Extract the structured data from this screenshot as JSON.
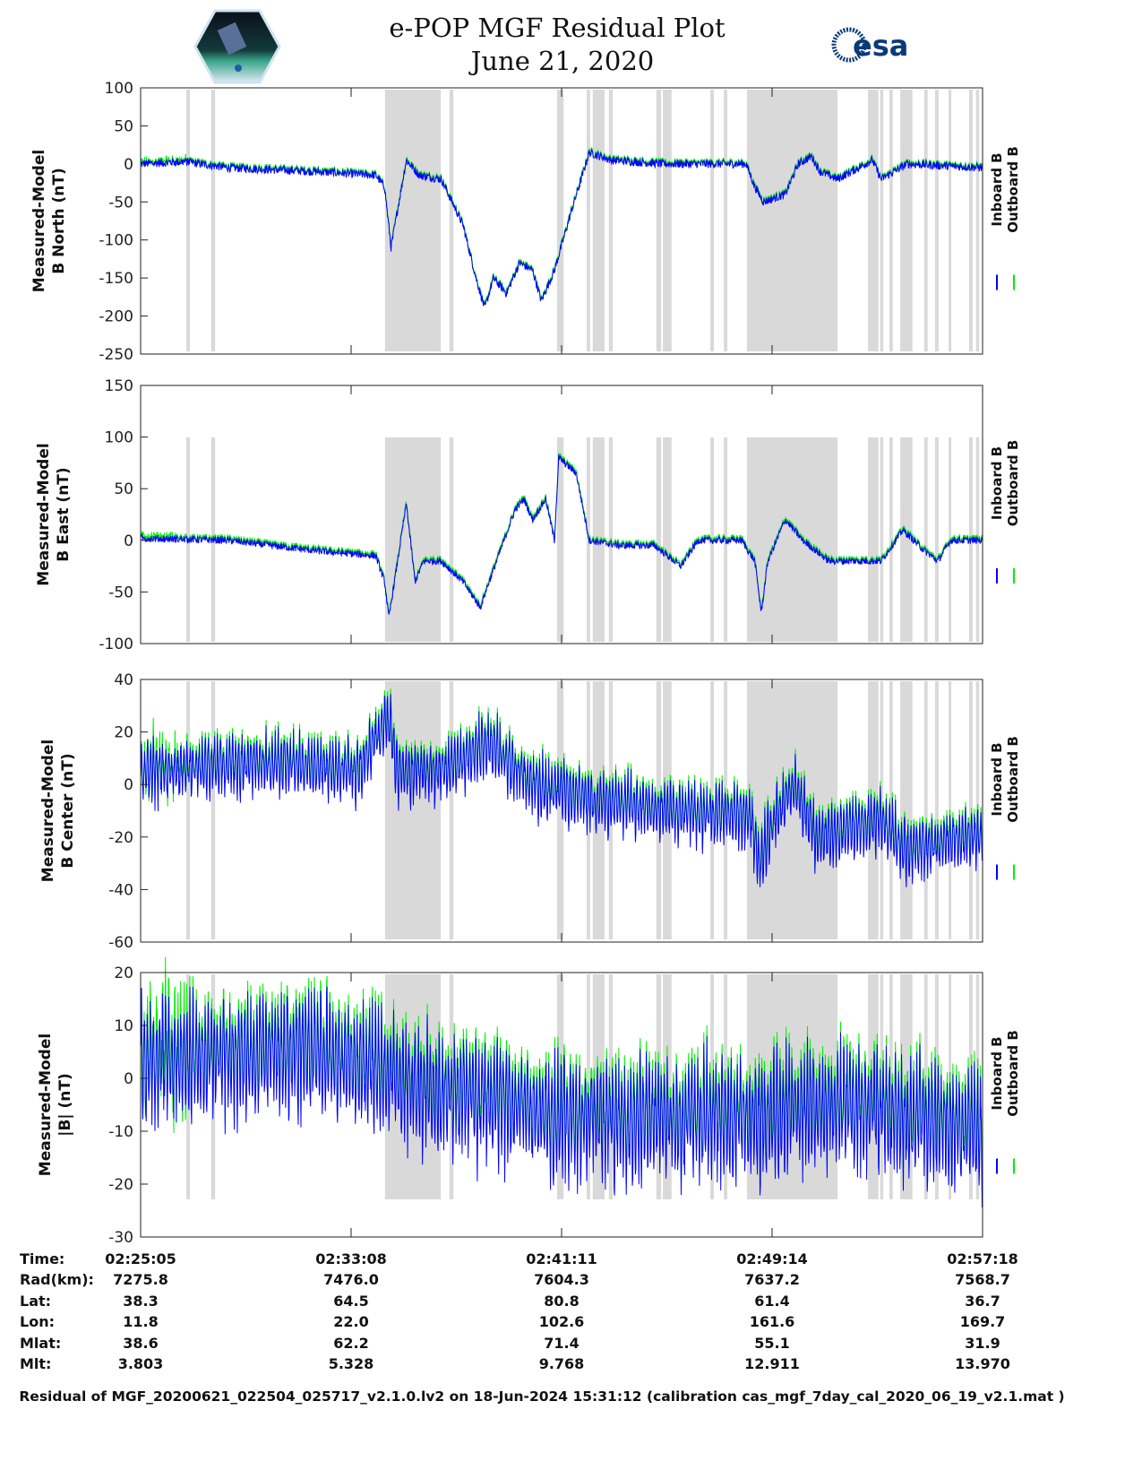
{
  "header": {
    "title": "e-POP MGF Residual Plot",
    "date": "June 21, 2020",
    "left_logo": "CASSIOPE",
    "right_logo": "esa"
  },
  "footer": "Residual of MGF_20200621_022504_025717_v2.1.0.lv2 on 18-Jun-2024 15:31:12 (calibration cas_mgf_7day_cal_2020_06_19_v2.1.mat )",
  "colors": {
    "inboard": "#0000ff",
    "outboard": "#00ee00",
    "band": "#d9d9d9"
  },
  "table": {
    "labels": [
      "Time:",
      "Rad(km):",
      "Lat:",
      "Lon:",
      "Mlat:",
      "Mlt:"
    ],
    "columns": [
      [
        "02:25:05",
        "7275.8",
        "38.3",
        "11.8",
        "38.6",
        "3.803"
      ],
      [
        "02:33:08",
        "7476.0",
        "64.5",
        "22.0",
        "62.2",
        "5.328"
      ],
      [
        "02:41:11",
        "7604.3",
        "80.8",
        "102.6",
        "71.4",
        "9.768"
      ],
      [
        "02:49:14",
        "7637.2",
        "61.4",
        "161.6",
        "55.1",
        "12.911"
      ],
      [
        "02:57:18",
        "7568.7",
        "36.7",
        "169.7",
        "31.9",
        "13.970"
      ]
    ]
  },
  "chart_data": {
    "type": "line",
    "x_unit": "seconds since 02:25:05",
    "xlim": [
      0,
      1933
    ],
    "xticks": [
      0,
      483,
      966,
      1449,
      1933
    ],
    "legend": [
      "Inboard B",
      "Outboard B"
    ],
    "legend_placement": "right",
    "shaded_intervals": [
      [
        105,
        113
      ],
      [
        162,
        171
      ],
      [
        561,
        689
      ],
      [
        709,
        718
      ],
      [
        956,
        971
      ],
      [
        1024,
        1032
      ],
      [
        1038,
        1065
      ],
      [
        1075,
        1084
      ],
      [
        1184,
        1195
      ],
      [
        1199,
        1219
      ],
      [
        1308,
        1316
      ],
      [
        1339,
        1347
      ],
      [
        1392,
        1600
      ],
      [
        1670,
        1694
      ],
      [
        1698,
        1705
      ],
      [
        1719,
        1727
      ],
      [
        1744,
        1772
      ],
      [
        1799,
        1807
      ],
      [
        1824,
        1832
      ],
      [
        1855,
        1861
      ],
      [
        1902,
        1910
      ],
      [
        1918,
        1925
      ]
    ],
    "panels": [
      {
        "ylabel": [
          "Measured-Model",
          "B North (nT)"
        ],
        "ylim": [
          -250,
          100
        ],
        "yticks": [
          "100",
          "50",
          "0",
          "-50",
          "-100",
          "-150",
          "-200",
          "-250"
        ],
        "noise": 8,
        "trend": [
          [
            0,
            0
          ],
          [
            100,
            3
          ],
          [
            200,
            -5
          ],
          [
            400,
            -10
          ],
          [
            540,
            -15
          ],
          [
            560,
            -30
          ],
          [
            575,
            -110
          ],
          [
            590,
            -60
          ],
          [
            610,
            5
          ],
          [
            640,
            -15
          ],
          [
            690,
            -20
          ],
          [
            740,
            -80
          ],
          [
            770,
            -150
          ],
          [
            790,
            -190
          ],
          [
            810,
            -150
          ],
          [
            840,
            -170
          ],
          [
            870,
            -130
          ],
          [
            900,
            -140
          ],
          [
            920,
            -180
          ],
          [
            950,
            -140
          ],
          [
            990,
            -60
          ],
          [
            1030,
            15
          ],
          [
            1080,
            5
          ],
          [
            1200,
            0
          ],
          [
            1390,
            0
          ],
          [
            1410,
            -30
          ],
          [
            1430,
            -50
          ],
          [
            1480,
            -40
          ],
          [
            1510,
            0
          ],
          [
            1540,
            10
          ],
          [
            1560,
            -10
          ],
          [
            1600,
            -20
          ],
          [
            1680,
            5
          ],
          [
            1700,
            -20
          ],
          [
            1760,
            0
          ],
          [
            1933,
            -5
          ]
        ]
      },
      {
        "ylabel": [
          "Measured-Model",
          "B East (nT)"
        ],
        "ylim": [
          -100,
          150
        ],
        "yticks": [
          "150",
          "100",
          "50",
          "0",
          "-50",
          "-100"
        ],
        "noise": 5,
        "trend": [
          [
            0,
            2
          ],
          [
            200,
            0
          ],
          [
            400,
            -10
          ],
          [
            540,
            -15
          ],
          [
            560,
            -40
          ],
          [
            570,
            -75
          ],
          [
            590,
            -20
          ],
          [
            610,
            35
          ],
          [
            630,
            -40
          ],
          [
            650,
            -20
          ],
          [
            690,
            -20
          ],
          [
            740,
            -40
          ],
          [
            780,
            -65
          ],
          [
            800,
            -40
          ],
          [
            860,
            30
          ],
          [
            880,
            40
          ],
          [
            900,
            20
          ],
          [
            930,
            40
          ],
          [
            950,
            0
          ],
          [
            960,
            80
          ],
          [
            1000,
            65
          ],
          [
            1030,
            0
          ],
          [
            1100,
            -5
          ],
          [
            1180,
            -5
          ],
          [
            1240,
            -25
          ],
          [
            1280,
            0
          ],
          [
            1380,
            0
          ],
          [
            1410,
            -20
          ],
          [
            1425,
            -70
          ],
          [
            1440,
            -20
          ],
          [
            1480,
            20
          ],
          [
            1520,
            0
          ],
          [
            1580,
            -20
          ],
          [
            1700,
            -20
          ],
          [
            1750,
            10
          ],
          [
            1800,
            -10
          ],
          [
            1830,
            -20
          ],
          [
            1860,
            0
          ],
          [
            1933,
            0
          ]
        ]
      },
      {
        "ylabel": [
          "Measured-Model",
          "B Center (nT)"
        ],
        "ylim": [
          -60,
          40
        ],
        "yticks": [
          "40",
          "20",
          "0",
          "-20",
          "-40",
          "-60"
        ],
        "noise": 11,
        "trend": [
          [
            0,
            5
          ],
          [
            300,
            8
          ],
          [
            500,
            5
          ],
          [
            570,
            25
          ],
          [
            590,
            5
          ],
          [
            700,
            5
          ],
          [
            800,
            15
          ],
          [
            900,
            0
          ],
          [
            1000,
            -5
          ],
          [
            1200,
            -10
          ],
          [
            1400,
            -12
          ],
          [
            1420,
            -30
          ],
          [
            1450,
            -15
          ],
          [
            1500,
            0
          ],
          [
            1550,
            -20
          ],
          [
            1700,
            -15
          ],
          [
            1760,
            -25
          ],
          [
            1933,
            -20
          ]
        ]
      },
      {
        "ylabel": [
          "Measured-Model",
          "|B| (nT)"
        ],
        "ylim": [
          -30,
          20
        ],
        "yticks": [
          "20",
          "10",
          "0",
          "-10",
          "-20",
          "-30"
        ],
        "noise": 11,
        "trend": [
          [
            0,
            3
          ],
          [
            400,
            5
          ],
          [
            700,
            -3
          ],
          [
            1000,
            -8
          ],
          [
            1400,
            -8
          ],
          [
            1600,
            -5
          ],
          [
            1933,
            -10
          ]
        ]
      }
    ]
  }
}
